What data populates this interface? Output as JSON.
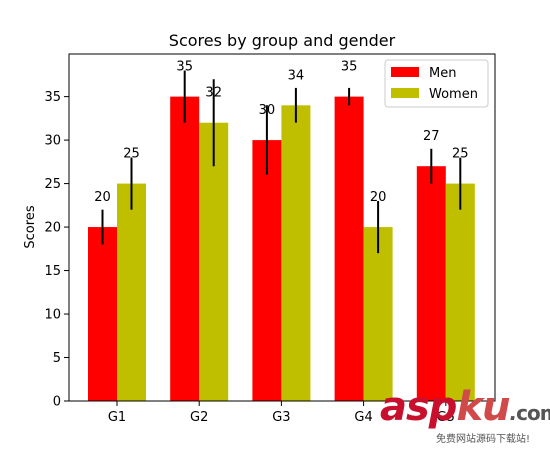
{
  "chart_data": {
    "type": "bar",
    "title": "Scores by group and gender",
    "xlabel": "",
    "ylabel": "Scores",
    "categories": [
      "G1",
      "G2",
      "G3",
      "G4",
      "G5"
    ],
    "series": [
      {
        "name": "Men",
        "values": [
          20,
          35,
          30,
          35,
          27
        ],
        "errors": [
          2,
          3,
          4,
          1,
          2
        ],
        "color": "#ff0000"
      },
      {
        "name": "Women",
        "values": [
          25,
          32,
          34,
          20,
          25
        ],
        "errors": [
          3,
          5,
          2,
          3,
          3
        ],
        "color": "#bfbf00"
      }
    ],
    "ylim": [
      0,
      39.9
    ],
    "yticks": [
      0,
      5,
      10,
      15,
      20,
      25,
      30,
      35
    ],
    "grid": false,
    "legend": "top-right",
    "data_labels": true
  },
  "watermark": {
    "brand_a": "asp",
    "brand_b": "ku",
    "dot": ".",
    "tld": "com",
    "subtitle": "免费网站源码下载站!"
  }
}
